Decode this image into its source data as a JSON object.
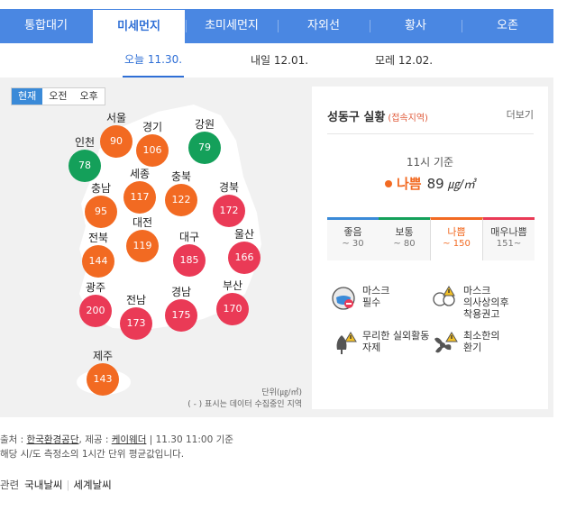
{
  "tabs": [
    "통합대기",
    "미세먼지",
    "초미세먼지",
    "자외선",
    "황사",
    "오존"
  ],
  "active_tab": 1,
  "days": [
    "오늘 11.30.",
    "내일 12.01.",
    "모레 12.02."
  ],
  "time_buttons": [
    "현재",
    "오전",
    "오후"
  ],
  "regions": [
    {
      "name": "서울",
      "value": "90",
      "color": "#f26a22"
    },
    {
      "name": "경기",
      "value": "106",
      "color": "#f26a22"
    },
    {
      "name": "강원",
      "value": "79",
      "color": "#14a05a"
    },
    {
      "name": "인천",
      "value": "78",
      "color": "#14a05a"
    },
    {
      "name": "세종",
      "value": "117",
      "color": "#f26a22"
    },
    {
      "name": "충북",
      "value": "122",
      "color": "#f26a22"
    },
    {
      "name": "충남",
      "value": "95",
      "color": "#f26a22"
    },
    {
      "name": "경북",
      "value": "172",
      "color": "#ea3a56"
    },
    {
      "name": "대전",
      "value": "119",
      "color": "#f26a22"
    },
    {
      "name": "전북",
      "value": "144",
      "color": "#f26a22"
    },
    {
      "name": "대구",
      "value": "185",
      "color": "#ea3a56"
    },
    {
      "name": "울산",
      "value": "166",
      "color": "#ea3a56"
    },
    {
      "name": "광주",
      "value": "200",
      "color": "#ea3a56"
    },
    {
      "name": "전남",
      "value": "173",
      "color": "#ea3a56"
    },
    {
      "name": "경남",
      "value": "175",
      "color": "#ea3a56"
    },
    {
      "name": "부산",
      "value": "170",
      "color": "#ea3a56"
    },
    {
      "name": "제주",
      "value": "143",
      "color": "#f26a22"
    }
  ],
  "unit_label": "단위(㎍/㎥)",
  "unit_note": "( - ) 표시는 데이터 수집중인 지역",
  "card": {
    "title": "성동구 실황",
    "subtitle": "(접속지역)",
    "more": "더보기",
    "base_time": "11시 기준",
    "grade": "나쁨",
    "value": "89",
    "unit": "㎍/㎥",
    "scale": [
      {
        "label": "좋음",
        "range": "~ 30",
        "color": "#3a8ad8"
      },
      {
        "label": "보통",
        "range": "~ 80",
        "color": "#14a05a"
      },
      {
        "label": "나쁨",
        "range": "~ 150",
        "color": "#f26a22"
      },
      {
        "label": "매우나쁨",
        "range": "151~",
        "color": "#ea3a56"
      }
    ],
    "tips": [
      {
        "line1": "마스크",
        "line2": "필수",
        "icon": "mask-icon"
      },
      {
        "line1": "마스크",
        "line2": "의사상의후",
        "line3": "착용권고",
        "icon": "family-mask-icon"
      },
      {
        "line1": "무리한 실외활동",
        "line2": "자제",
        "icon": "outdoor-warning-icon"
      },
      {
        "line1": "최소한의",
        "line2": "환기",
        "icon": "ventilation-icon"
      }
    ]
  },
  "footer": {
    "source_prefix": "출처 : ",
    "source": "한국환경공단",
    "provider_prefix": ", 제공 : ",
    "provider": "케이웨더",
    "time": " | 11.30 11:00 기준",
    "note": "해당 시/도 측정소의 1시간 단위 평균값입니다."
  },
  "related": {
    "label": "관련",
    "links": [
      "국내날씨",
      "세계날씨"
    ]
  }
}
